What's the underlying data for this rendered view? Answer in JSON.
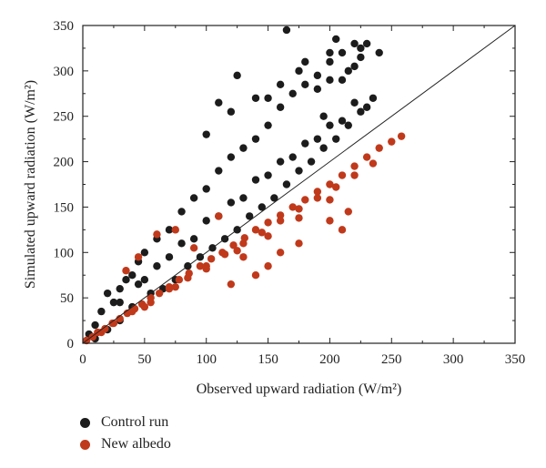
{
  "chart_data": {
    "type": "scatter",
    "xlabel": "Observed upward radiation (W/m²)",
    "ylabel": "Simulated upward radiation (W/m²)",
    "xlim": [
      0,
      350
    ],
    "ylim": [
      0,
      350
    ],
    "xticks": [
      "0",
      "50",
      "100",
      "150",
      "200",
      "250",
      "300",
      "350"
    ],
    "yticks": [
      "0",
      "50",
      "100",
      "150",
      "200",
      "250",
      "300",
      "350"
    ],
    "reference_line": "1:1",
    "grid": false,
    "legend_position": "bottom-left",
    "series": [
      {
        "name": "Control run",
        "color": "#1c1c1c",
        "x": [
          5,
          10,
          15,
          20,
          25,
          30,
          35,
          40,
          45,
          50,
          60,
          70,
          80,
          90,
          100,
          110,
          120,
          130,
          140,
          150,
          160,
          170,
          180,
          190,
          200,
          210,
          220,
          230,
          240,
          10,
          20,
          30,
          40,
          55,
          65,
          75,
          85,
          95,
          105,
          115,
          125,
          135,
          145,
          155,
          165,
          175,
          185,
          195,
          205,
          215,
          225,
          235,
          30,
          45,
          60,
          80,
          100,
          120,
          140,
          160,
          180,
          200,
          220,
          50,
          70,
          90,
          110,
          130,
          150,
          170,
          190,
          210,
          230,
          100,
          120,
          140,
          160,
          110,
          125,
          150,
          175,
          200,
          205,
          225,
          215,
          200,
          165,
          180,
          190,
          195,
          210,
          220,
          225
        ],
        "y": [
          10,
          20,
          35,
          55,
          45,
          60,
          70,
          75,
          90,
          100,
          115,
          125,
          145,
          160,
          170,
          190,
          205,
          215,
          225,
          240,
          260,
          275,
          285,
          295,
          310,
          320,
          330,
          330,
          320,
          5,
          15,
          25,
          40,
          55,
          60,
          70,
          85,
          95,
          105,
          115,
          125,
          140,
          150,
          160,
          175,
          190,
          200,
          215,
          225,
          240,
          255,
          270,
          45,
          65,
          85,
          110,
          135,
          155,
          180,
          200,
          220,
          240,
          265,
          70,
          95,
          115,
          140,
          160,
          185,
          205,
          225,
          245,
          260,
          230,
          255,
          270,
          285,
          265,
          295,
          270,
          300,
          320,
          335,
          325,
          300,
          290,
          345,
          310,
          280,
          250,
          290,
          305,
          315
        ]
      },
      {
        "name": "New albedo",
        "color": "#c0391b",
        "x": [
          3,
          8,
          12,
          18,
          24,
          30,
          36,
          42,
          48,
          55,
          62,
          70,
          78,
          86,
          95,
          104,
          113,
          122,
          131,
          140,
          150,
          160,
          170,
          180,
          190,
          200,
          210,
          220,
          230,
          240,
          250,
          258,
          15,
          25,
          40,
          55,
          70,
          85,
          100,
          115,
          130,
          145,
          160,
          175,
          190,
          205,
          220,
          235,
          50,
          75,
          100,
          125,
          150,
          175,
          200,
          140,
          150,
          160,
          175,
          200,
          210,
          215,
          120,
          130,
          90,
          110,
          75,
          60,
          45,
          35
        ],
        "y": [
          3,
          7,
          12,
          16,
          22,
          27,
          33,
          38,
          43,
          50,
          55,
          62,
          70,
          77,
          85,
          93,
          100,
          108,
          116,
          125,
          133,
          141,
          150,
          158,
          167,
          175,
          185,
          195,
          205,
          215,
          222,
          228,
          12,
          22,
          35,
          45,
          60,
          72,
          85,
          98,
          110,
          122,
          135,
          148,
          160,
          172,
          185,
          198,
          40,
          62,
          82,
          102,
          118,
          138,
          158,
          75,
          85,
          100,
          110,
          135,
          125,
          145,
          65,
          95,
          105,
          140,
          125,
          120,
          95,
          80
        ]
      }
    ]
  }
}
